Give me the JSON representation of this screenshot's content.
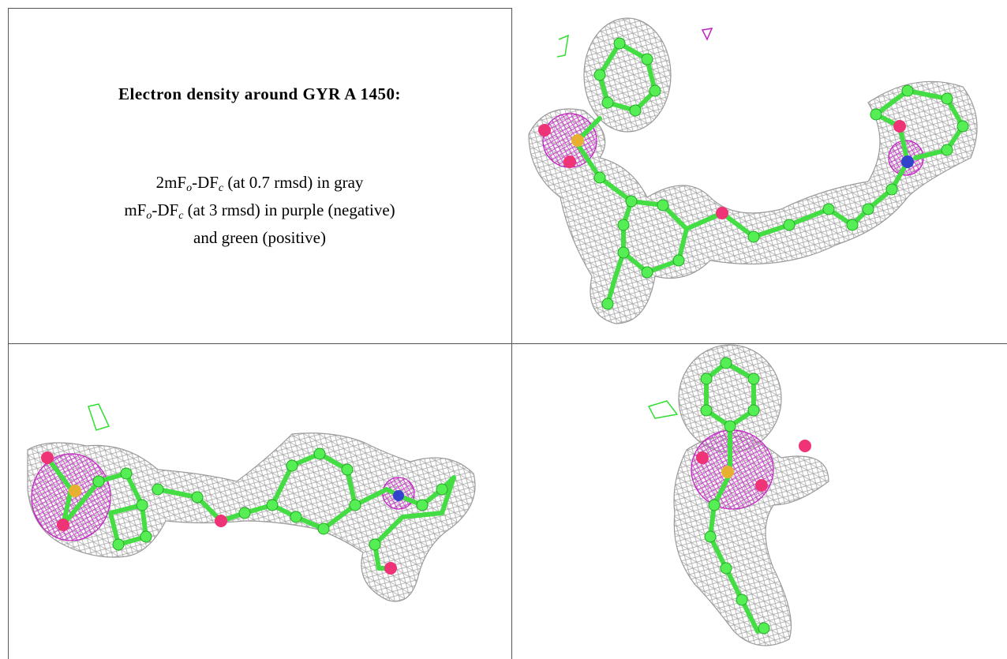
{
  "title": "Electron density around GYR A 1450:",
  "legend": [
    [
      "2mF",
      "o",
      "-DF",
      "c",
      " (at 0.7 rmsd) in gray"
    ],
    [
      "mF",
      "o",
      "-DF",
      "c",
      " (at 3 rmsd) in purple (negative)"
    ],
    [
      "and green (positive)"
    ]
  ]
}
